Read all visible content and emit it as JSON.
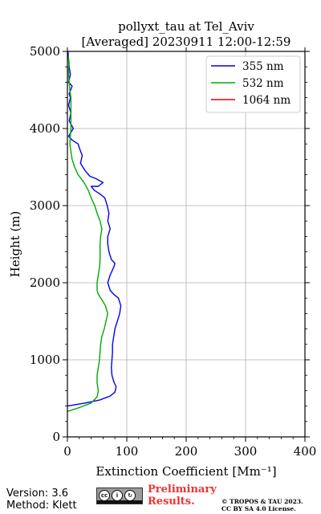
{
  "chart_data": {
    "type": "line",
    "title": "pollyxt_tau at Tel_Aviv",
    "subtitle": "[Averaged] 20230911 12:00-12:59",
    "xlabel": "Extinction Coefficient [Mm⁻¹]",
    "ylabel": "Height (m)",
    "xlim": [
      0,
      400
    ],
    "ylim": [
      0,
      5000
    ],
    "xticks": [
      0,
      100,
      200,
      300,
      400
    ],
    "yticks": [
      0,
      1000,
      2000,
      3000,
      4000,
      5000
    ],
    "xtick_labels": [
      "0",
      "100",
      "200",
      "300",
      "400"
    ],
    "ytick_labels": [
      "0",
      "1000",
      "2000",
      "3000",
      "4000",
      "5000"
    ],
    "grid": true,
    "legend_position": "top-right",
    "series": [
      {
        "name": "355 nm",
        "color": "#0000ee",
        "points": [
          [
            0,
            400
          ],
          [
            30,
            440
          ],
          [
            55,
            480
          ],
          [
            72,
            530
          ],
          [
            80,
            580
          ],
          [
            82,
            650
          ],
          [
            78,
            720
          ],
          [
            75,
            800
          ],
          [
            74,
            900
          ],
          [
            75,
            1000
          ],
          [
            76,
            1100
          ],
          [
            76,
            1200
          ],
          [
            78,
            1300
          ],
          [
            80,
            1400
          ],
          [
            84,
            1500
          ],
          [
            88,
            1600
          ],
          [
            90,
            1700
          ],
          [
            86,
            1800
          ],
          [
            78,
            1850
          ],
          [
            72,
            1900
          ],
          [
            68,
            2000
          ],
          [
            72,
            2100
          ],
          [
            78,
            2200
          ],
          [
            80,
            2250
          ],
          [
            74,
            2300
          ],
          [
            70,
            2400
          ],
          [
            68,
            2500
          ],
          [
            68,
            2600
          ],
          [
            72,
            2700
          ],
          [
            68,
            2800
          ],
          [
            70,
            2900
          ],
          [
            67,
            3000
          ],
          [
            63,
            3100
          ],
          [
            55,
            3150
          ],
          [
            45,
            3200
          ],
          [
            40,
            3250
          ],
          [
            52,
            3250
          ],
          [
            60,
            3300
          ],
          [
            48,
            3350
          ],
          [
            38,
            3380
          ],
          [
            30,
            3450
          ],
          [
            22,
            3550
          ],
          [
            25,
            3650
          ],
          [
            20,
            3750
          ],
          [
            18,
            3800
          ],
          [
            8,
            3850
          ],
          [
            2,
            3900
          ],
          [
            6,
            3950
          ],
          [
            10,
            4000
          ],
          [
            3,
            4100
          ],
          [
            6,
            4200
          ],
          [
            2,
            4300
          ],
          [
            5,
            4400
          ],
          [
            3,
            4450
          ],
          [
            8,
            4550
          ],
          [
            2,
            4600
          ],
          [
            5,
            4700
          ],
          [
            3,
            4800
          ],
          [
            1,
            5000
          ]
        ]
      },
      {
        "name": "532 nm",
        "color": "#00aa00",
        "points": [
          [
            0,
            330
          ],
          [
            20,
            380
          ],
          [
            40,
            440
          ],
          [
            50,
            520
          ],
          [
            52,
            600
          ],
          [
            50,
            700
          ],
          [
            50,
            800
          ],
          [
            52,
            900
          ],
          [
            54,
            1000
          ],
          [
            55,
            1100
          ],
          [
            56,
            1200
          ],
          [
            58,
            1300
          ],
          [
            62,
            1400
          ],
          [
            65,
            1500
          ],
          [
            68,
            1600
          ],
          [
            64,
            1700
          ],
          [
            58,
            1780
          ],
          [
            52,
            1850
          ],
          [
            50,
            1900
          ],
          [
            50,
            2000
          ],
          [
            52,
            2100
          ],
          [
            54,
            2200
          ],
          [
            55,
            2300
          ],
          [
            55,
            2400
          ],
          [
            55,
            2500
          ],
          [
            56,
            2600
          ],
          [
            58,
            2700
          ],
          [
            55,
            2800
          ],
          [
            50,
            2900
          ],
          [
            46,
            3000
          ],
          [
            40,
            3100
          ],
          [
            35,
            3200
          ],
          [
            28,
            3300
          ],
          [
            18,
            3400
          ],
          [
            12,
            3500
          ],
          [
            8,
            3600
          ],
          [
            6,
            3700
          ],
          [
            4,
            3800
          ],
          [
            5,
            3900
          ],
          [
            6,
            4000
          ],
          [
            6,
            4100
          ],
          [
            6,
            4200
          ],
          [
            6,
            4300
          ],
          [
            6,
            4400
          ],
          [
            4,
            4500
          ],
          [
            3,
            4600
          ],
          [
            2,
            4700
          ],
          [
            2,
            4800
          ],
          [
            3,
            4850
          ],
          [
            1,
            4950
          ]
        ]
      },
      {
        "name": "1064 nm",
        "color": "#dd0000",
        "points": []
      }
    ]
  },
  "footer": {
    "version": "Version: 3.6",
    "method": "Method: Klett",
    "license_badge": "cc-by-sa-icon",
    "preliminary_line1": "Preliminary",
    "preliminary_line2": "Results.",
    "copyright_line1": "© TROPOS & TAU 2023.",
    "copyright_line2": "CC BY SA 4.0 License."
  }
}
